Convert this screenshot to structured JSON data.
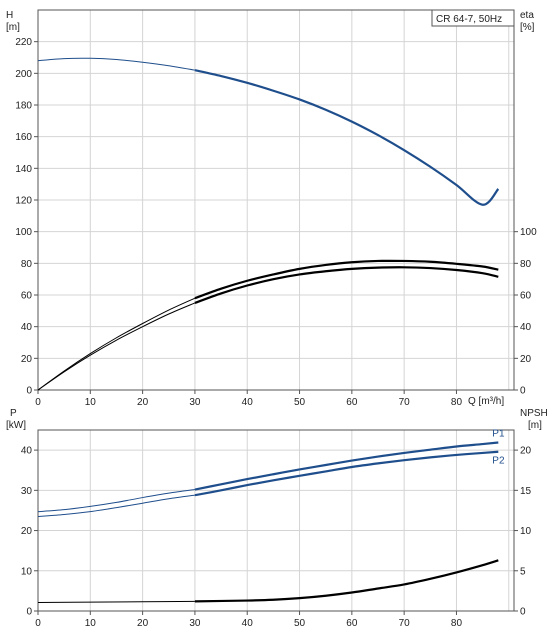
{
  "chart_data": [
    {
      "type": "line",
      "title": "CR 64-7, 50Hz",
      "xlabel": "Q [m³/h]",
      "x_ticks": [
        0,
        10,
        20,
        30,
        40,
        50,
        60,
        70,
        80
      ],
      "xlim": [
        0,
        91
      ],
      "ylabel_left": {
        "name": "H",
        "unit": "[m]"
      },
      "ylabel_right": {
        "name": "eta",
        "unit": "[%]"
      },
      "ylim_left": [
        0,
        240
      ],
      "y_ticks_left": [
        0,
        20,
        40,
        60,
        80,
        100,
        120,
        140,
        160,
        180,
        200,
        220
      ],
      "ylim_right": [
        0,
        240
      ],
      "y_ticks_right": [
        0,
        20,
        40,
        60,
        80,
        100
      ],
      "grid": true,
      "series": [
        {
          "role": "head",
          "color": "#1f4e8c",
          "thin_until_x": 30,
          "x": [
            0,
            5,
            10,
            15,
            20,
            25,
            30,
            35,
            40,
            45,
            50,
            55,
            60,
            65,
            70,
            75,
            80,
            85,
            88
          ],
          "y": [
            208,
            209.3,
            209.5,
            208.7,
            207,
            204.8,
            202,
            198.3,
            194,
            189,
            183.5,
            177,
            169.5,
            161,
            151.5,
            141,
            129.5,
            117,
            127
          ]
        },
        {
          "role": "efficiency-upper",
          "color": "#000000",
          "thin_until_x": 30,
          "x": [
            0,
            5,
            10,
            15,
            20,
            25,
            30,
            35,
            40,
            45,
            50,
            55,
            60,
            65,
            70,
            75,
            80,
            85,
            88
          ],
          "y": [
            0,
            12,
            23,
            33,
            42,
            50.5,
            58,
            64,
            69,
            73,
            76.5,
            79,
            80.7,
            81.5,
            81.5,
            81,
            79.7,
            78,
            76
          ]
        },
        {
          "role": "efficiency-lower",
          "color": "#000000",
          "thin_until_x": 30,
          "x": [
            0,
            5,
            10,
            15,
            20,
            25,
            30,
            35,
            40,
            45,
            50,
            55,
            60,
            65,
            70,
            75,
            80,
            85,
            88
          ],
          "y": [
            0,
            11.5,
            22,
            31.5,
            40,
            48,
            55,
            61,
            66,
            70,
            73,
            75,
            76.5,
            77.3,
            77.5,
            77,
            75.8,
            73.8,
            71.5
          ]
        }
      ]
    },
    {
      "type": "line",
      "xlim": [
        0,
        91
      ],
      "x_ticks": [
        0,
        10,
        20,
        30,
        40,
        50,
        60,
        70,
        80
      ],
      "ylabel_left": {
        "name": "P",
        "unit": "[kW]"
      },
      "ylabel_right": {
        "name": "NPSH",
        "unit": "[m]"
      },
      "ylim_left": [
        0,
        45
      ],
      "y_ticks_left": [
        0,
        10,
        20,
        30,
        40
      ],
      "ylim_right": [
        0,
        22.5
      ],
      "y_ticks_right": [
        0,
        5,
        10,
        15,
        20
      ],
      "grid": true,
      "series": [
        {
          "name": "P1",
          "color": "#1f4e8c",
          "axis": "left",
          "thin_until_x": 30,
          "x": [
            0,
            5,
            10,
            15,
            20,
            25,
            30,
            35,
            40,
            45,
            50,
            55,
            60,
            65,
            70,
            75,
            80,
            85,
            88
          ],
          "y": [
            24.7,
            25.2,
            26,
            27,
            28.2,
            29.3,
            30.2,
            31.5,
            32.8,
            34,
            35.2,
            36.3,
            37.4,
            38.4,
            39.3,
            40.1,
            40.9,
            41.5,
            41.9
          ]
        },
        {
          "name": "P2",
          "color": "#1f4e8c",
          "axis": "left",
          "thin_until_x": 30,
          "x": [
            0,
            5,
            10,
            15,
            20,
            25,
            30,
            35,
            40,
            45,
            50,
            55,
            60,
            65,
            70,
            75,
            80,
            85,
            88
          ],
          "y": [
            23.5,
            24,
            24.7,
            25.7,
            26.8,
            27.9,
            28.8,
            30,
            31.3,
            32.5,
            33.6,
            34.7,
            35.8,
            36.7,
            37.5,
            38.2,
            38.8,
            39.3,
            39.6
          ]
        },
        {
          "role": "npsh",
          "color": "#000000",
          "axis": "right",
          "thin_until_x": 30,
          "x": [
            0,
            10,
            20,
            30,
            40,
            45,
            50,
            55,
            60,
            65,
            70,
            75,
            80,
            85,
            88
          ],
          "y": [
            1.05,
            1.1,
            1.15,
            1.2,
            1.3,
            1.4,
            1.6,
            1.9,
            2.3,
            2.8,
            3.3,
            4.0,
            4.8,
            5.7,
            6.3
          ]
        }
      ]
    }
  ]
}
